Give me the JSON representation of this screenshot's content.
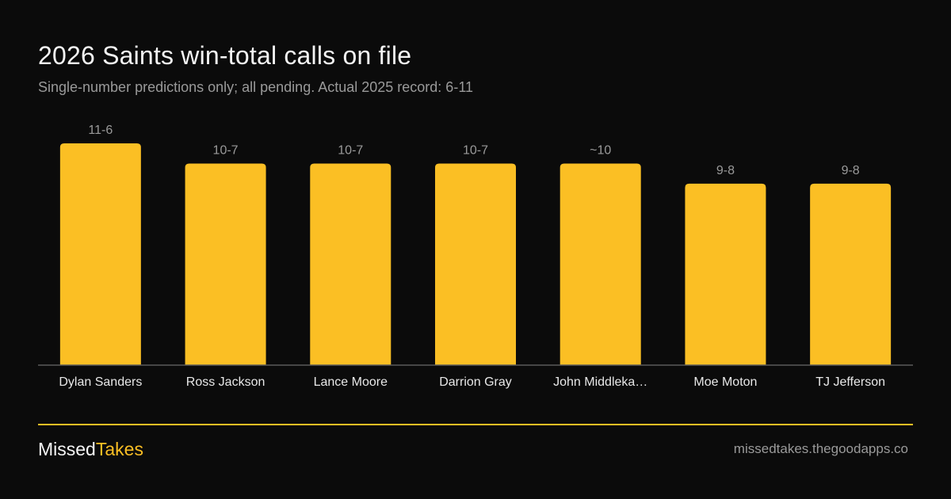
{
  "title": "2026 Saints win-total calls on file",
  "subtitle": "Single-number predictions only; all pending. Actual 2025 record: 6-11",
  "colors": {
    "background": "#0b0b0b",
    "bar": "#fbbf24",
    "accent": "#fbbf24",
    "axis": "#5a5a5a",
    "muted_text": "#9a9a9a",
    "label_text": "#e8e8e8"
  },
  "chart_data": {
    "type": "bar",
    "categories": [
      "Dylan Sanders",
      "Ross Jackson",
      "Lance Moore",
      "Darrion Gray",
      "John Middleka…",
      "Moe Moton",
      "TJ Jefferson"
    ],
    "values": [
      11,
      10,
      10,
      10,
      10,
      9,
      9
    ],
    "data_labels": [
      "11-6",
      "10-7",
      "10-7",
      "10-7",
      "~10",
      "9-8",
      "9-8"
    ],
    "grid": false,
    "legend": "none"
  },
  "footer": {
    "brand_part1": "Missed",
    "brand_part2": "Takes",
    "site": "missedtakes.thegoodapps.co"
  }
}
